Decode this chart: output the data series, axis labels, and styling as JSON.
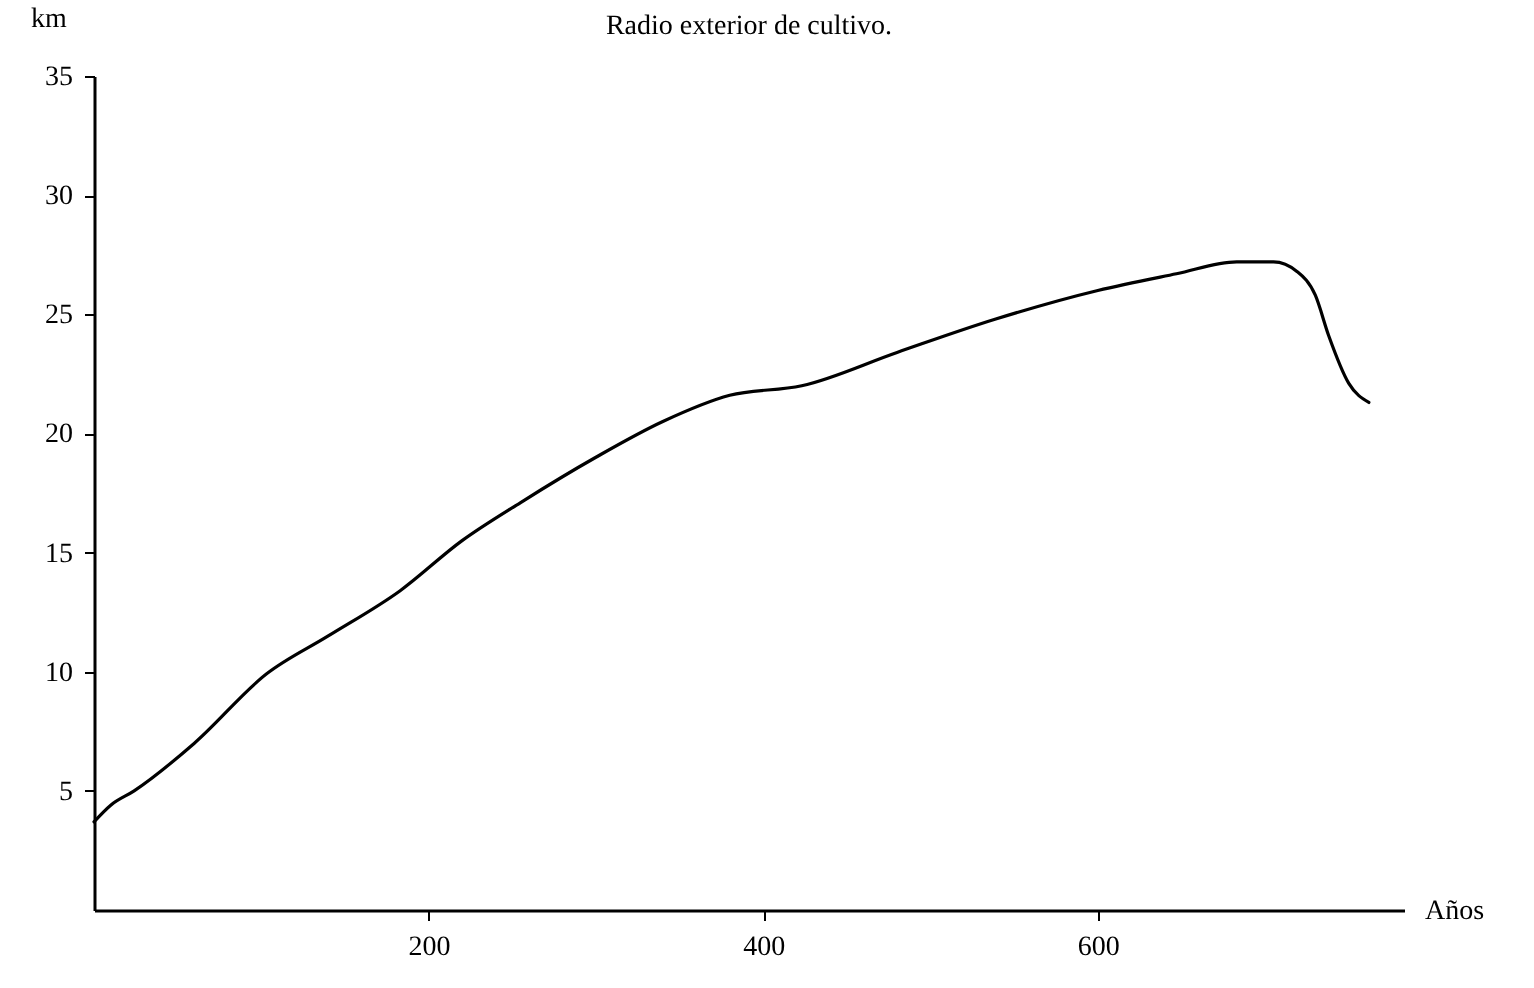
{
  "chart_data": {
    "type": "line",
    "title": "Radio exterior de cultivo.",
    "xlabel": "Años",
    "ylabel": "km",
    "x": [
      0,
      10,
      24,
      60,
      103,
      140,
      183,
      220,
      255,
      300,
      340,
      380,
      423,
      480,
      539,
      600,
      647,
      683,
      705,
      719,
      730,
      738,
      750,
      762
    ],
    "series": [
      {
        "color": "#000000",
        "values": [
          3.7,
          4.4,
          5.0,
          7.0,
          9.9,
          11.5,
          13.4,
          15.5,
          17.1,
          19.0,
          20.5,
          21.6,
          22.0,
          23.4,
          24.8,
          26.0,
          26.7,
          27.2,
          27.2,
          26.8,
          25.8,
          24.1,
          22.1,
          21.3
        ]
      }
    ],
    "xlim": [
      0,
      783
    ],
    "ylim": [
      0,
      35
    ],
    "xticks": [
      200,
      400,
      600
    ],
    "yticks": [
      5,
      10,
      15,
      20,
      25,
      30,
      35
    ],
    "grid": false,
    "legend": false,
    "marker": "none",
    "line_style": "solid"
  }
}
